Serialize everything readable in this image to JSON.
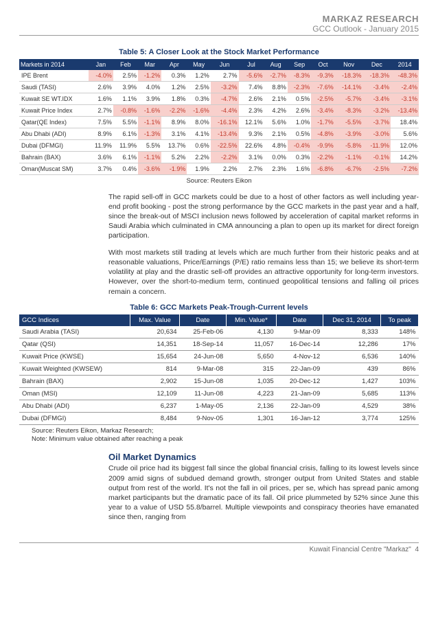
{
  "header": {
    "org": "MARKAZ RESEARCH",
    "subtitle": "GCC Outlook - January 2015"
  },
  "table5": {
    "title": "Table 5: A Closer Look at the Stock Market Performance",
    "header_first": "Markets in 2014",
    "months": [
      "Jan",
      "Feb",
      "Mar",
      "Apr",
      "May",
      "Jun",
      "Jul",
      "Aug",
      "Sep",
      "Oct",
      "Nov",
      "Dec",
      "2014"
    ],
    "rows": [
      {
        "label": "IPE Brent",
        "vals": [
          -4.0,
          2.5,
          -1.2,
          0.3,
          1.2,
          2.7,
          -5.6,
          -2.7,
          -8.3,
          -9.3,
          -18.3,
          -18.3,
          -48.3
        ]
      },
      {
        "label": "Saudi (TASI)",
        "vals": [
          2.6,
          3.9,
          4.0,
          1.2,
          2.5,
          -3.2,
          7.4,
          8.8,
          -2.3,
          -7.6,
          -14.1,
          -3.4,
          -2.4
        ]
      },
      {
        "label": "Kuwait SE WT.IDX",
        "vals": [
          1.6,
          1.1,
          3.9,
          1.8,
          0.3,
          -4.7,
          2.6,
          2.1,
          0.5,
          -2.5,
          -5.7,
          -3.4,
          -3.1
        ]
      },
      {
        "label": "Kuwait Price Index",
        "vals": [
          2.7,
          -0.8,
          -1.6,
          -2.2,
          -1.6,
          -4.4,
          2.3,
          4.2,
          2.6,
          -3.4,
          -8.3,
          -3.2,
          -13.4
        ]
      },
      {
        "label": "Qatar(QE Index)",
        "vals": [
          7.5,
          5.5,
          -1.1,
          8.9,
          8.0,
          -16.1,
          12.1,
          5.6,
          1.0,
          -1.7,
          -5.5,
          -3.7,
          18.4
        ]
      },
      {
        "label": "Abu Dhabi (ADI)",
        "vals": [
          8.9,
          6.1,
          -1.3,
          3.1,
          4.1,
          -13.4,
          9.3,
          2.1,
          0.5,
          -4.8,
          -3.9,
          -3.0,
          5.6
        ]
      },
      {
        "label": "Dubai (DFMGI)",
        "vals": [
          11.9,
          11.9,
          5.5,
          13.7,
          0.6,
          -22.5,
          22.6,
          4.8,
          -0.4,
          -9.9,
          -5.8,
          -11.9,
          12.0
        ]
      },
      {
        "label": "Bahrain (BAX)",
        "vals": [
          3.6,
          6.1,
          -1.1,
          5.2,
          2.2,
          -2.2,
          3.1,
          0.0,
          0.3,
          -2.2,
          -1.1,
          -0.1,
          14.2
        ]
      },
      {
        "label": "Oman(Muscat SM)",
        "vals": [
          3.7,
          0.4,
          -3.6,
          -1.9,
          1.9,
          2.2,
          2.7,
          2.3,
          1.6,
          -6.8,
          -6.7,
          -2.5,
          -7.2
        ]
      }
    ],
    "source": "Source: Reuters Eikon"
  },
  "para1": "The rapid sell-off in GCC markets could be due to a host of other factors as well including year-end profit booking - post the strong performance by the GCC markets in the past year and a half, since the break-out of MSCI inclusion news followed by acceleration of capital market reforms in Saudi Arabia which culminated in CMA announcing a plan to open up its market for direct foreign participation.",
  "para2": "With most markets still trading at levels which are much further from their historic peaks and at reasonable valuations, Price/Earnings (P/E) ratio remains less than 15; we believe its short-term volatility at play and the drastic sell-off provides an attractive opportunity for long-term investors. However, over the short-to-medium term, continued geopolitical tensions and falling oil prices remain a concern.",
  "table6": {
    "title": "Table 6: GCC Markets Peak-Trough-Current levels",
    "headers": [
      "GCC Indices",
      "Max. Value",
      "Date",
      "Min. Value*",
      "Date",
      "Dec 31, 2014",
      "To peak"
    ],
    "rows": [
      {
        "label": "Saudi Arabia (TASI)",
        "max": "20,634",
        "maxd": "25-Feb-06",
        "min": "4,130",
        "mind": "9-Mar-09",
        "dec": "8,333",
        "peak": "148%"
      },
      {
        "label": "Qatar (QSI)",
        "max": "14,351",
        "maxd": "18-Sep-14",
        "min": "11,057",
        "mind": "16-Dec-14",
        "dec": "12,286",
        "peak": "17%"
      },
      {
        "label": "Kuwait Price (KWSE)",
        "max": "15,654",
        "maxd": "24-Jun-08",
        "min": "5,650",
        "mind": "4-Nov-12",
        "dec": "6,536",
        "peak": "140%"
      },
      {
        "label": "Kuwait Weighted (KWSEW)",
        "max": "814",
        "maxd": "9-Mar-08",
        "min": "315",
        "mind": "22-Jan-09",
        "dec": "439",
        "peak": "86%"
      },
      {
        "label": "Bahrain (BAX)",
        "max": "2,902",
        "maxd": "15-Jun-08",
        "min": "1,035",
        "mind": "20-Dec-12",
        "dec": "1,427",
        "peak": "103%"
      },
      {
        "label": "Oman (MSI)",
        "max": "12,109",
        "maxd": "11-Jun-08",
        "min": "4,223",
        "mind": "21-Jan-09",
        "dec": "5,685",
        "peak": "113%"
      },
      {
        "label": "Abu Dhabi (ADI)",
        "max": "6,237",
        "maxd": "1-May-05",
        "min": "2,136",
        "mind": "22-Jan-09",
        "dec": "4,529",
        "peak": "38%"
      },
      {
        "label": "Dubai (DFMGI)",
        "max": "8,484",
        "maxd": "9-Nov-05",
        "min": "1,301",
        "mind": "16-Jan-12",
        "dec": "3,774",
        "peak": "125%"
      }
    ],
    "note1": "Source: Reuters Eikon, Markaz Research;",
    "note2": "Note: Minimum value obtained after reaching a peak"
  },
  "section": {
    "title": "Oil Market Dynamics",
    "body": "Crude oil price had its biggest fall since the global financial crisis, falling to its lowest levels since 2009 amid signs of subdued demand growth, stronger output from United States and stable output from rest of the world. It's not the fall in oil prices, per se, which has spread panic among market participants but the dramatic pace of its fall. Oil price plummeted by 52% since June this year to a value of USD 55.8/barrel. Multiple viewpoints and conspiracy theories have emanated since then, ranging from"
  },
  "footer": {
    "text": "Kuwait Financial Centre \"Markaz\"",
    "page": "4"
  }
}
